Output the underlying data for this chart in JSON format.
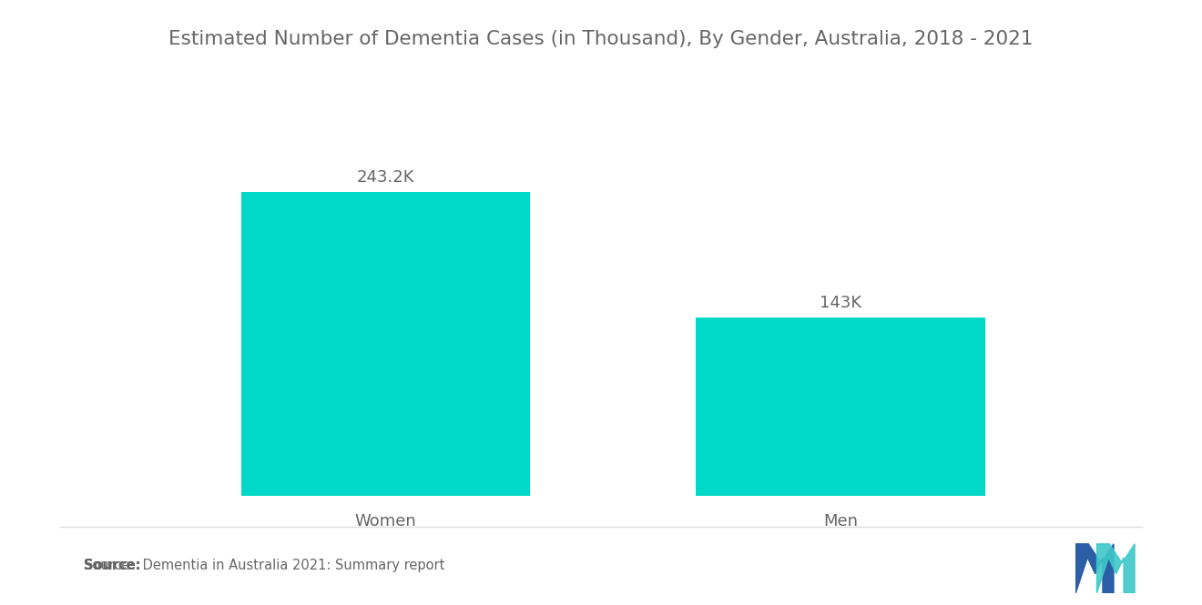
{
  "title": "Estimated Number of Dementia Cases (in Thousand), By Gender, Australia, 2018 - 2021",
  "categories": [
    "Women",
    "Men"
  ],
  "values": [
    243.2,
    143.0
  ],
  "labels": [
    "243.2K",
    "143K"
  ],
  "bar_color": "#00D9C8",
  "background_color": "#ffffff",
  "title_fontsize": 15.5,
  "label_fontsize": 13,
  "tick_fontsize": 13,
  "source_bold": "Source:",
  "source_rest": "  Dementia in Australia 2021: Summary report",
  "ylim": [
    0,
    300
  ],
  "bar_width": 0.28
}
